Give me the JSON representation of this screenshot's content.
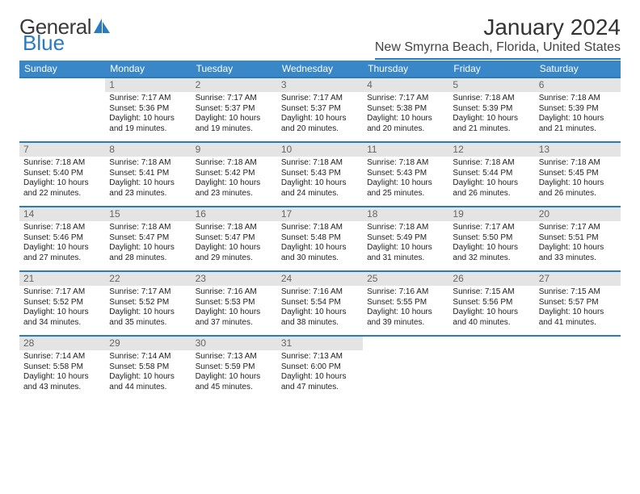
{
  "brand": {
    "part1": "General",
    "part2": "Blue"
  },
  "title": "January 2024",
  "location": "New Smyrna Beach, Florida, United States",
  "colors": {
    "header_bar": "#3a87c8",
    "week_divider": "#2a7ac0",
    "daynum_bg": "#e4e4e4",
    "text": "#222222"
  },
  "weekdays": [
    "Sunday",
    "Monday",
    "Tuesday",
    "Wednesday",
    "Thursday",
    "Friday",
    "Saturday"
  ],
  "layout": {
    "columns": 7,
    "rows": 5,
    "first_weekday_index": 1
  },
  "days": [
    {
      "n": 1,
      "sr": "Sunrise: 7:17 AM",
      "ss": "Sunset: 5:36 PM",
      "dl1": "Daylight: 10 hours",
      "dl2": "and 19 minutes."
    },
    {
      "n": 2,
      "sr": "Sunrise: 7:17 AM",
      "ss": "Sunset: 5:37 PM",
      "dl1": "Daylight: 10 hours",
      "dl2": "and 19 minutes."
    },
    {
      "n": 3,
      "sr": "Sunrise: 7:17 AM",
      "ss": "Sunset: 5:37 PM",
      "dl1": "Daylight: 10 hours",
      "dl2": "and 20 minutes."
    },
    {
      "n": 4,
      "sr": "Sunrise: 7:17 AM",
      "ss": "Sunset: 5:38 PM",
      "dl1": "Daylight: 10 hours",
      "dl2": "and 20 minutes."
    },
    {
      "n": 5,
      "sr": "Sunrise: 7:18 AM",
      "ss": "Sunset: 5:39 PM",
      "dl1": "Daylight: 10 hours",
      "dl2": "and 21 minutes."
    },
    {
      "n": 6,
      "sr": "Sunrise: 7:18 AM",
      "ss": "Sunset: 5:39 PM",
      "dl1": "Daylight: 10 hours",
      "dl2": "and 21 minutes."
    },
    {
      "n": 7,
      "sr": "Sunrise: 7:18 AM",
      "ss": "Sunset: 5:40 PM",
      "dl1": "Daylight: 10 hours",
      "dl2": "and 22 minutes."
    },
    {
      "n": 8,
      "sr": "Sunrise: 7:18 AM",
      "ss": "Sunset: 5:41 PM",
      "dl1": "Daylight: 10 hours",
      "dl2": "and 23 minutes."
    },
    {
      "n": 9,
      "sr": "Sunrise: 7:18 AM",
      "ss": "Sunset: 5:42 PM",
      "dl1": "Daylight: 10 hours",
      "dl2": "and 23 minutes."
    },
    {
      "n": 10,
      "sr": "Sunrise: 7:18 AM",
      "ss": "Sunset: 5:43 PM",
      "dl1": "Daylight: 10 hours",
      "dl2": "and 24 minutes."
    },
    {
      "n": 11,
      "sr": "Sunrise: 7:18 AM",
      "ss": "Sunset: 5:43 PM",
      "dl1": "Daylight: 10 hours",
      "dl2": "and 25 minutes."
    },
    {
      "n": 12,
      "sr": "Sunrise: 7:18 AM",
      "ss": "Sunset: 5:44 PM",
      "dl1": "Daylight: 10 hours",
      "dl2": "and 26 minutes."
    },
    {
      "n": 13,
      "sr": "Sunrise: 7:18 AM",
      "ss": "Sunset: 5:45 PM",
      "dl1": "Daylight: 10 hours",
      "dl2": "and 26 minutes."
    },
    {
      "n": 14,
      "sr": "Sunrise: 7:18 AM",
      "ss": "Sunset: 5:46 PM",
      "dl1": "Daylight: 10 hours",
      "dl2": "and 27 minutes."
    },
    {
      "n": 15,
      "sr": "Sunrise: 7:18 AM",
      "ss": "Sunset: 5:47 PM",
      "dl1": "Daylight: 10 hours",
      "dl2": "and 28 minutes."
    },
    {
      "n": 16,
      "sr": "Sunrise: 7:18 AM",
      "ss": "Sunset: 5:47 PM",
      "dl1": "Daylight: 10 hours",
      "dl2": "and 29 minutes."
    },
    {
      "n": 17,
      "sr": "Sunrise: 7:18 AM",
      "ss": "Sunset: 5:48 PM",
      "dl1": "Daylight: 10 hours",
      "dl2": "and 30 minutes."
    },
    {
      "n": 18,
      "sr": "Sunrise: 7:18 AM",
      "ss": "Sunset: 5:49 PM",
      "dl1": "Daylight: 10 hours",
      "dl2": "and 31 minutes."
    },
    {
      "n": 19,
      "sr": "Sunrise: 7:17 AM",
      "ss": "Sunset: 5:50 PM",
      "dl1": "Daylight: 10 hours",
      "dl2": "and 32 minutes."
    },
    {
      "n": 20,
      "sr": "Sunrise: 7:17 AM",
      "ss": "Sunset: 5:51 PM",
      "dl1": "Daylight: 10 hours",
      "dl2": "and 33 minutes."
    },
    {
      "n": 21,
      "sr": "Sunrise: 7:17 AM",
      "ss": "Sunset: 5:52 PM",
      "dl1": "Daylight: 10 hours",
      "dl2": "and 34 minutes."
    },
    {
      "n": 22,
      "sr": "Sunrise: 7:17 AM",
      "ss": "Sunset: 5:52 PM",
      "dl1": "Daylight: 10 hours",
      "dl2": "and 35 minutes."
    },
    {
      "n": 23,
      "sr": "Sunrise: 7:16 AM",
      "ss": "Sunset: 5:53 PM",
      "dl1": "Daylight: 10 hours",
      "dl2": "and 37 minutes."
    },
    {
      "n": 24,
      "sr": "Sunrise: 7:16 AM",
      "ss": "Sunset: 5:54 PM",
      "dl1": "Daylight: 10 hours",
      "dl2": "and 38 minutes."
    },
    {
      "n": 25,
      "sr": "Sunrise: 7:16 AM",
      "ss": "Sunset: 5:55 PM",
      "dl1": "Daylight: 10 hours",
      "dl2": "and 39 minutes."
    },
    {
      "n": 26,
      "sr": "Sunrise: 7:15 AM",
      "ss": "Sunset: 5:56 PM",
      "dl1": "Daylight: 10 hours",
      "dl2": "and 40 minutes."
    },
    {
      "n": 27,
      "sr": "Sunrise: 7:15 AM",
      "ss": "Sunset: 5:57 PM",
      "dl1": "Daylight: 10 hours",
      "dl2": "and 41 minutes."
    },
    {
      "n": 28,
      "sr": "Sunrise: 7:14 AM",
      "ss": "Sunset: 5:58 PM",
      "dl1": "Daylight: 10 hours",
      "dl2": "and 43 minutes."
    },
    {
      "n": 29,
      "sr": "Sunrise: 7:14 AM",
      "ss": "Sunset: 5:58 PM",
      "dl1": "Daylight: 10 hours",
      "dl2": "and 44 minutes."
    },
    {
      "n": 30,
      "sr": "Sunrise: 7:13 AM",
      "ss": "Sunset: 5:59 PM",
      "dl1": "Daylight: 10 hours",
      "dl2": "and 45 minutes."
    },
    {
      "n": 31,
      "sr": "Sunrise: 7:13 AM",
      "ss": "Sunset: 6:00 PM",
      "dl1": "Daylight: 10 hours",
      "dl2": "and 47 minutes."
    }
  ]
}
